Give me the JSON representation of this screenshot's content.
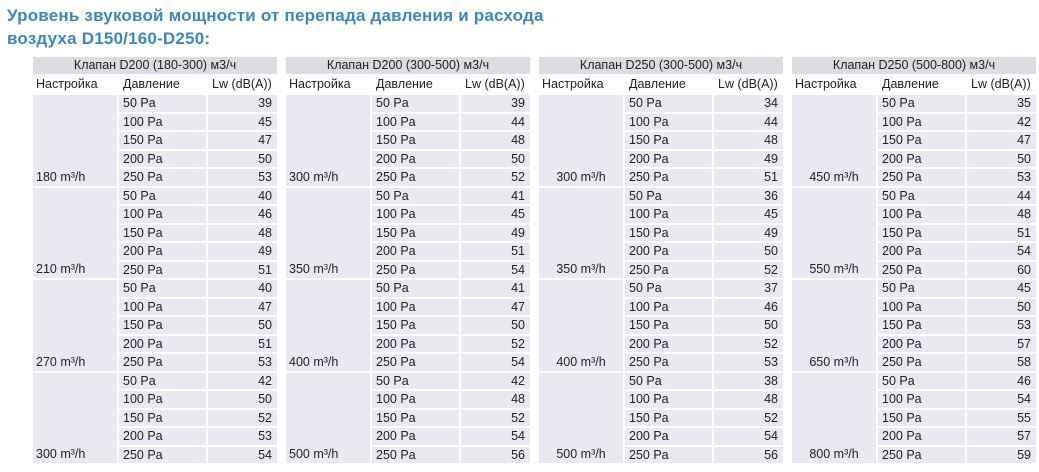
{
  "title": {
    "line1": "Уровень звуковой мощности от перепада давления и расхода",
    "line2": "воздуха D150/160-D250:"
  },
  "columns": [
    "Настройка",
    "Давление",
    "Lw (dB(A))"
  ],
  "colors": {
    "title": "#3a87c1",
    "table_header_bg": "#dcdde3",
    "cell_bg": "#e9eaf1",
    "text": "#212121"
  },
  "tables": [
    {
      "header": "Клапан D200 (180-300) м3/ч",
      "groups": [
        {
          "setting": "180 m³/h",
          "rows": [
            [
              "50 Pa",
              39
            ],
            [
              "100 Pa",
              45
            ],
            [
              "150 Pa",
              47
            ],
            [
              "200 Pa",
              50
            ],
            [
              "250 Pa",
              53
            ]
          ]
        },
        {
          "setting": "210 m³/h",
          "rows": [
            [
              "50 Pa",
              40
            ],
            [
              "100 Pa",
              46
            ],
            [
              "150 Pa",
              48
            ],
            [
              "200 Pa",
              49
            ],
            [
              "250 Pa",
              51
            ]
          ]
        },
        {
          "setting": "270 m³/h",
          "rows": [
            [
              "50 Pa",
              40
            ],
            [
              "100 Pa",
              47
            ],
            [
              "150 Pa",
              50
            ],
            [
              "200 Pa",
              51
            ],
            [
              "250 Pa",
              53
            ]
          ]
        },
        {
          "setting": "300 m³/h",
          "rows": [
            [
              "50 Pa",
              42
            ],
            [
              "100 Pa",
              50
            ],
            [
              "150 Pa",
              52
            ],
            [
              "200 Pa",
              53
            ],
            [
              "250 Pa",
              54
            ]
          ]
        }
      ]
    },
    {
      "header": "Клапан D200 (300-500) м3/ч",
      "groups": [
        {
          "setting": "300 m³/h",
          "rows": [
            [
              "50 Pa",
              39
            ],
            [
              "100 Pa",
              44
            ],
            [
              "150 Pa",
              48
            ],
            [
              "200 Pa",
              50
            ],
            [
              "250 Pa",
              52
            ]
          ]
        },
        {
          "setting": "350 m³/h",
          "rows": [
            [
              "50 Pa",
              41
            ],
            [
              "100 Pa",
              45
            ],
            [
              "150 Pa",
              49
            ],
            [
              "200 Pa",
              51
            ],
            [
              "250 Pa",
              54
            ]
          ]
        },
        {
          "setting": "400 m³/h",
          "rows": [
            [
              "50 Pa",
              41
            ],
            [
              "100 Pa",
              47
            ],
            [
              "150 Pa",
              50
            ],
            [
              "200 Pa",
              52
            ],
            [
              "250 Pa",
              54
            ]
          ]
        },
        {
          "setting": "500 m³/h",
          "rows": [
            [
              "50 Pa",
              42
            ],
            [
              "100 Pa",
              48
            ],
            [
              "150 Pa",
              52
            ],
            [
              "200 Pa",
              54
            ],
            [
              "250 Pa",
              56
            ]
          ]
        }
      ]
    },
    {
      "header": "Клапан D250 (300-500) м3/ч",
      "groups": [
        {
          "setting": "300 m³/h",
          "rows": [
            [
              "50 Pa",
              34
            ],
            [
              "100 Pa",
              44
            ],
            [
              "150 Pa",
              48
            ],
            [
              "200 Pa",
              49
            ],
            [
              "250 Pa",
              51
            ]
          ]
        },
        {
          "setting": "350 m³/h",
          "rows": [
            [
              "50 Pa",
              36
            ],
            [
              "100 Pa",
              45
            ],
            [
              "150 Pa",
              49
            ],
            [
              "200 Pa",
              50
            ],
            [
              "250 Pa",
              52
            ]
          ]
        },
        {
          "setting": "400 m³/h",
          "rows": [
            [
              "50 Pa",
              37
            ],
            [
              "100 Pa",
              46
            ],
            [
              "150 Pa",
              50
            ],
            [
              "200 Pa",
              52
            ],
            [
              "250 Pa",
              53
            ]
          ]
        },
        {
          "setting": "500 m³/h",
          "rows": [
            [
              "50 Pa",
              38
            ],
            [
              "100 Pa",
              48
            ],
            [
              "150 Pa",
              52
            ],
            [
              "200 Pa",
              54
            ],
            [
              "250 Pa",
              56
            ]
          ]
        }
      ]
    },
    {
      "header": "Клапан D250 (500-800) м3/ч",
      "groups": [
        {
          "setting": "450 m³/h",
          "rows": [
            [
              "50 Pa",
              35
            ],
            [
              "100 Pa",
              42
            ],
            [
              "150 Pa",
              47
            ],
            [
              "200 Pa",
              50
            ],
            [
              "250 Pa",
              53
            ]
          ]
        },
        {
          "setting": "550 m³/h",
          "rows": [
            [
              "50 Pa",
              44
            ],
            [
              "100 Pa",
              48
            ],
            [
              "150 Pa",
              51
            ],
            [
              "200 Pa",
              54
            ],
            [
              "250 Pa",
              60
            ]
          ]
        },
        {
          "setting": "650 m³/h",
          "rows": [
            [
              "50 Pa",
              45
            ],
            [
              "100 Pa",
              50
            ],
            [
              "150 Pa",
              53
            ],
            [
              "200 Pa",
              57
            ],
            [
              "250 Pa",
              58
            ]
          ]
        },
        {
          "setting": "800 m³/h",
          "rows": [
            [
              "50 Pa",
              46
            ],
            [
              "100 Pa",
              54
            ],
            [
              "150 Pa",
              55
            ],
            [
              "200 Pa",
              57
            ],
            [
              "250 Pa",
              59
            ]
          ]
        }
      ]
    }
  ]
}
